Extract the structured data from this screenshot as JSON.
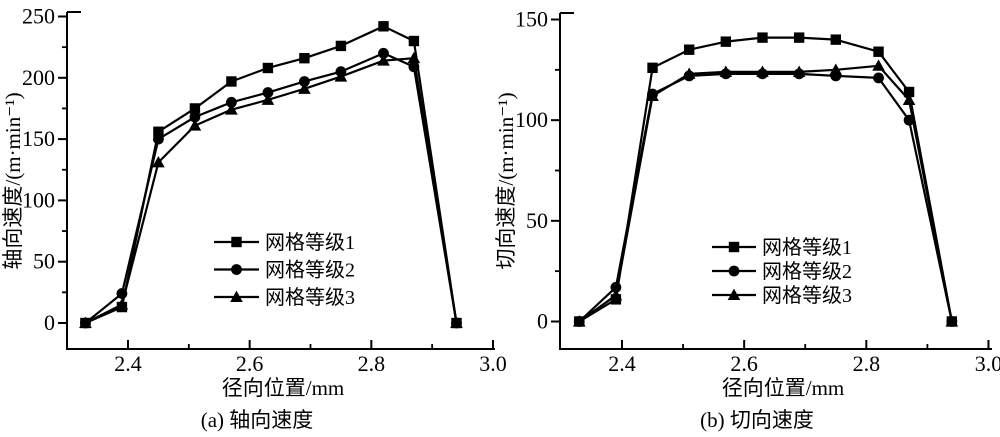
{
  "figure": {
    "background": "#ffffff",
    "ink_color": "#000000",
    "description": "two-panel mesh-independence velocity profiles"
  },
  "chart_data": [
    {
      "type": "line",
      "panel_caption": "(a) 轴向速度",
      "xlabel": "径向位置/mm",
      "ylabel": "轴向速度/(m·min⁻¹)",
      "xlim": [
        2.3,
        3.0
      ],
      "ylim": [
        0,
        250
      ],
      "x_major_ticks": [
        "2.4",
        "2.6",
        "2.8",
        "3.0"
      ],
      "x_major_values": [
        2.4,
        2.6,
        2.8,
        3.0
      ],
      "x_minor_values": [
        2.5,
        2.7,
        2.9
      ],
      "y_major_ticks": [
        "0",
        "50",
        "100",
        "150",
        "200",
        "250"
      ],
      "y_major_values": [
        0,
        50,
        100,
        150,
        200,
        250
      ],
      "y_minor_values": [
        25,
        75,
        125,
        175,
        225
      ],
      "grid": false,
      "legend_position": "inside-bottom-center",
      "x": [
        2.33,
        2.39,
        2.45,
        2.51,
        2.57,
        2.63,
        2.69,
        2.75,
        2.82,
        2.87,
        2.94
      ],
      "series": [
        {
          "name": "网格等级1",
          "marker": "square",
          "values": [
            0,
            13,
            156,
            175,
            197,
            208,
            216,
            226,
            242,
            230,
            0
          ]
        },
        {
          "name": "网格等级2",
          "marker": "circle",
          "values": [
            0,
            24,
            150,
            168,
            180,
            188,
            197,
            205,
            220,
            209,
            0
          ]
        },
        {
          "name": "网格等级3",
          "marker": "triangle",
          "values": [
            0,
            15,
            131,
            161,
            174,
            182,
            191,
            201,
            214,
            216,
            0
          ]
        }
      ]
    },
    {
      "type": "line",
      "panel_caption": "(b) 切向速度",
      "xlabel": "径向位置/mm",
      "ylabel": "切向速度/(m·min⁻¹)",
      "xlim": [
        2.3,
        3.0
      ],
      "ylim": [
        0,
        150
      ],
      "x_major_ticks": [
        "2.4",
        "2.6",
        "2.8",
        "3.0"
      ],
      "x_major_values": [
        2.4,
        2.6,
        2.8,
        3.0
      ],
      "x_minor_values": [
        2.5,
        2.7,
        2.9
      ],
      "y_major_ticks": [
        "0",
        "50",
        "100",
        "150"
      ],
      "y_major_values": [
        0,
        50,
        100,
        150
      ],
      "y_minor_values": [
        25,
        75,
        125
      ],
      "grid": false,
      "legend_position": "inside-bottom-center",
      "x": [
        2.33,
        2.39,
        2.45,
        2.51,
        2.57,
        2.63,
        2.69,
        2.75,
        2.82,
        2.87,
        2.94
      ],
      "series": [
        {
          "name": "网格等级1",
          "marker": "square",
          "values": [
            0,
            11,
            126,
            135,
            139,
            141,
            141,
            140,
            134,
            114,
            0
          ]
        },
        {
          "name": "网格等级2",
          "marker": "circle",
          "values": [
            0,
            17,
            113,
            122,
            123,
            123,
            123,
            122,
            121,
            100,
            0
          ]
        },
        {
          "name": "网格等级3",
          "marker": "triangle",
          "values": [
            0,
            13,
            112,
            123,
            124,
            124,
            124,
            125,
            127,
            110,
            0
          ]
        }
      ]
    }
  ]
}
